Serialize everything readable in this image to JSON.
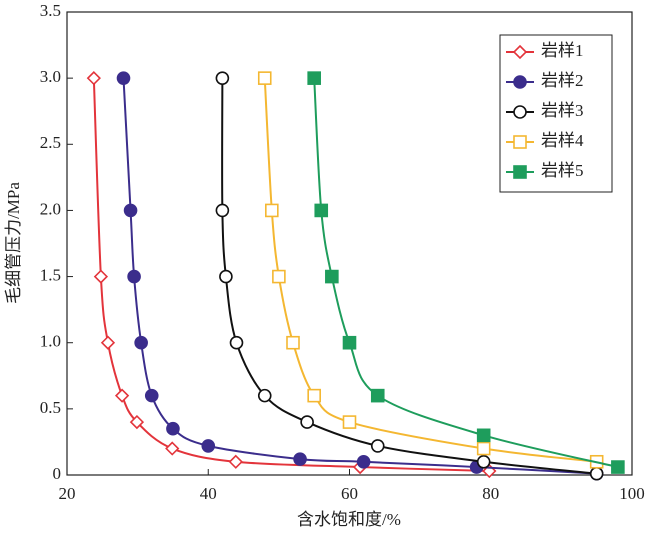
{
  "chart_data": {
    "type": "line",
    "xlabel": "含水饱和度/%",
    "ylabel": "毛细管压力/MPa",
    "xlim": [
      20,
      100
    ],
    "xticks": [
      20,
      40,
      60,
      80,
      100
    ],
    "ylim": [
      0,
      3.5
    ],
    "yticks": [
      0,
      0.5,
      {
        "value": 1,
        "label": "1.0"
      },
      1.5,
      {
        "value": 2,
        "label": "2.0"
      },
      2.5,
      {
        "value": 3,
        "label": "3.0"
      },
      3.5
    ],
    "legend": "upper right",
    "smooth": true,
    "series": [
      {
        "name": "岩样1",
        "color": "#e3343b",
        "marker": "diamond-open",
        "x": [
          23.8,
          24.8,
          25.8,
          27.8,
          29.9,
          34.9,
          43.9,
          61.5,
          79.8
        ],
        "values": [
          3.0,
          1.5,
          1.0,
          0.6,
          0.4,
          0.2,
          0.1,
          0.06,
          0.03
        ]
      },
      {
        "name": "岩样2",
        "color": "#3b2d8c",
        "marker": "circle-filled",
        "x": [
          28,
          29,
          29.5,
          30.5,
          32,
          35,
          40,
          53,
          62,
          78,
          95
        ],
        "values": [
          3.0,
          2.0,
          1.5,
          1.0,
          0.6,
          0.35,
          0.22,
          0.12,
          0.1,
          0.06,
          0.01
        ]
      },
      {
        "name": "岩样3",
        "color": "#111111",
        "marker": "circle-open",
        "x": [
          42,
          42,
          42.5,
          44,
          48,
          54,
          64,
          79,
          95
        ],
        "values": [
          3.0,
          2.0,
          1.5,
          1.0,
          0.6,
          0.4,
          0.22,
          0.1,
          0.01
        ]
      },
      {
        "name": "岩样4",
        "color": "#f4b731",
        "marker": "square-open",
        "x": [
          48,
          49,
          50,
          52,
          55,
          60,
          79,
          95
        ],
        "values": [
          3.0,
          2.0,
          1.5,
          1.0,
          0.6,
          0.4,
          0.2,
          0.1
        ]
      },
      {
        "name": "岩样5",
        "color": "#1e9d5c",
        "marker": "square-filled",
        "x": [
          55,
          56,
          57.5,
          60,
          64,
          79,
          98
        ],
        "values": [
          3.0,
          2.0,
          1.5,
          1.0,
          0.6,
          0.3,
          0.06
        ]
      }
    ]
  }
}
